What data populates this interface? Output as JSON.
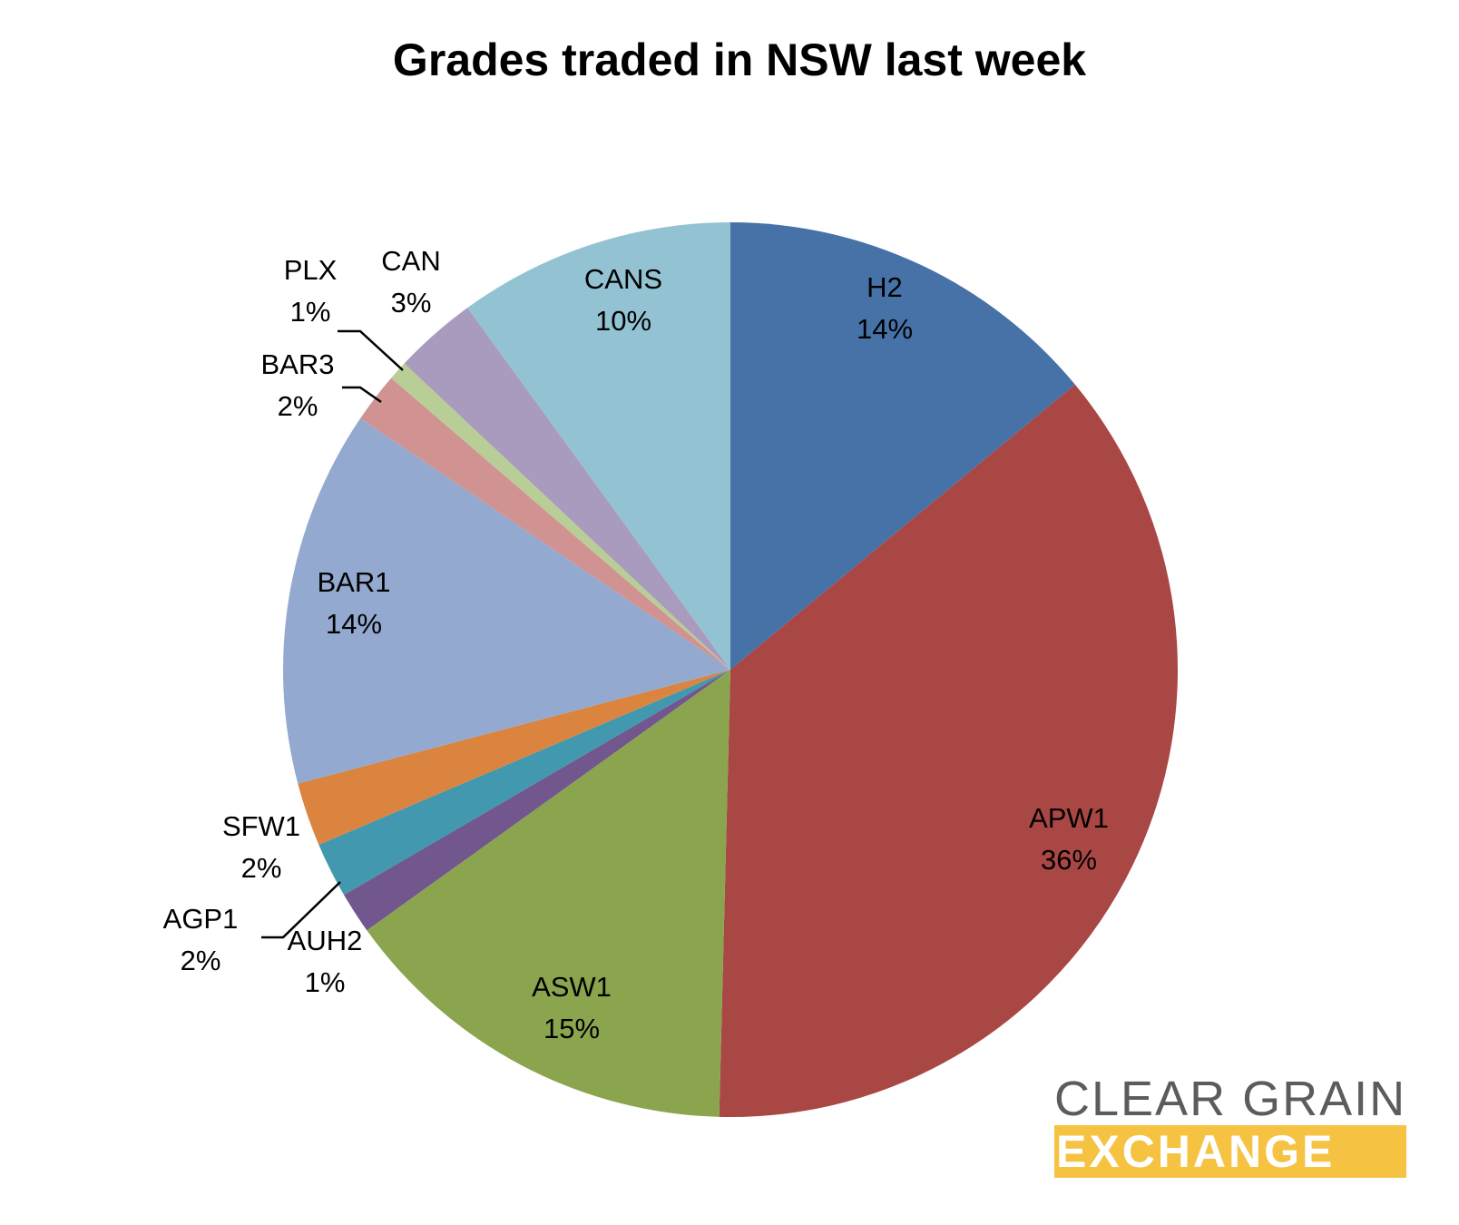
{
  "chart_data": {
    "type": "pie",
    "title": "Grades traded in NSW last week",
    "start_angle_deg": 0,
    "direction": "clockwise",
    "slices": [
      {
        "name": "H2",
        "label": "14%",
        "value": 14.0,
        "color": "#4672a8"
      },
      {
        "name": "APW1",
        "label": "36%",
        "value": 36.4,
        "color": "#a94745"
      },
      {
        "name": "ASW1",
        "label": "15%",
        "value": 14.7,
        "color": "#8aa54e"
      },
      {
        "name": "AUH2",
        "label": "1%",
        "value": 1.5,
        "color": "#71578e"
      },
      {
        "name": "AGP1",
        "label": "2%",
        "value": 2.0,
        "color": "#4298ae"
      },
      {
        "name": "SFW1",
        "label": "2%",
        "value": 2.3,
        "color": "#da8440"
      },
      {
        "name": "BAR1",
        "label": "14%",
        "value": 13.6,
        "color": "#94a9cf"
      },
      {
        "name": "BAR3",
        "label": "2%",
        "value": 1.8,
        "color": "#d09391"
      },
      {
        "name": "PLX",
        "label": "1%",
        "value": 0.7,
        "color": "#b9cd96"
      },
      {
        "name": "CAN",
        "label": "3%",
        "value": 3.0,
        "color": "#a99bbd"
      },
      {
        "name": "CANS",
        "label": "10%",
        "value": 10.0,
        "color": "#93c3d3"
      }
    ]
  },
  "logo": {
    "line1": "CLEAR GRAIN",
    "line2": "EXCHANGE",
    "accent_color": "#f5c242",
    "text_color": "#5a5c5e"
  }
}
